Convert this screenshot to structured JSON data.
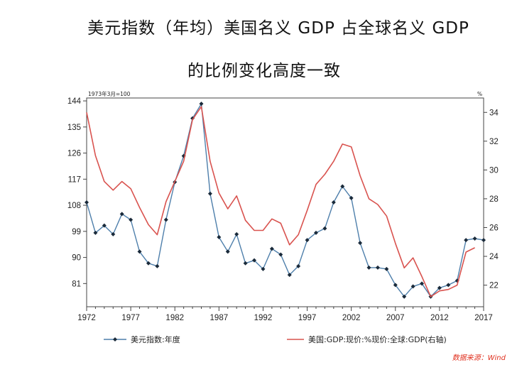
{
  "title": {
    "line1": "美元指数（年均）美国名义 GDP 占全球名义 GDP",
    "line2": "的比例变化高度一致"
  },
  "source": "数据来源：Wind",
  "colors": {
    "dollar_index": "#4e7fab",
    "gdp_share": "#d9534f",
    "axis": "#444444"
  },
  "chart_data": {
    "type": "line",
    "left_axis_unit": "1973年3月=100",
    "right_axis_unit": "%",
    "x_ticks": [
      1972,
      1977,
      1982,
      1987,
      1992,
      1997,
      2002,
      2007,
      2012,
      2017
    ],
    "xlim": [
      1972,
      2017
    ],
    "y_left": {
      "ticks": [
        81,
        90,
        99,
        108,
        117,
        126,
        135,
        144
      ],
      "lim": [
        73,
        145
      ]
    },
    "y_right": {
      "ticks": [
        22,
        24,
        26,
        28,
        30,
        32,
        34
      ],
      "lim": [
        20.5,
        35
      ]
    },
    "series": [
      {
        "name": "美元指数:年度",
        "axis": "left",
        "markers": true,
        "x": [
          1972,
          1973,
          1974,
          1975,
          1976,
          1977,
          1978,
          1979,
          1980,
          1981,
          1982,
          1983,
          1984,
          1985,
          1986,
          1987,
          1988,
          1989,
          1990,
          1991,
          1992,
          1993,
          1994,
          1995,
          1996,
          1997,
          1998,
          1999,
          2000,
          2001,
          2002,
          2003,
          2004,
          2005,
          2006,
          2007,
          2008,
          2009,
          2010,
          2011,
          2012,
          2013,
          2014,
          2015,
          2016,
          2017
        ],
        "values": [
          109,
          98.5,
          101,
          98,
          105,
          103,
          92,
          88,
          87,
          103,
          116,
          125,
          138,
          143,
          112,
          97,
          92,
          98,
          88,
          89,
          86,
          93,
          91,
          84,
          87,
          96,
          98.5,
          100,
          109,
          114.5,
          110.5,
          95,
          86.5,
          86.5,
          86,
          80.5,
          76.5,
          80,
          81,
          76.5,
          79.5,
          80.5,
          82,
          96,
          96.5,
          96
        ]
      },
      {
        "name": "美国:GDP:现价:%现价:全球:GDP(右轴)",
        "axis": "right",
        "markers": false,
        "x": [
          1972,
          1973,
          1974,
          1975,
          1976,
          1977,
          1978,
          1979,
          1980,
          1981,
          1982,
          1983,
          1984,
          1985,
          1986,
          1987,
          1988,
          1989,
          1990,
          1991,
          1992,
          1993,
          1994,
          1995,
          1996,
          1997,
          1998,
          1999,
          2000,
          2001,
          2002,
          2003,
          2004,
          2005,
          2006,
          2007,
          2008,
          2009,
          2010,
          2011,
          2012,
          2013,
          2014,
          2015,
          2016,
          2017
        ],
        "values": [
          34,
          31,
          29.2,
          28.6,
          29.2,
          28.7,
          27.4,
          26.2,
          25.5,
          27.8,
          29.2,
          30.6,
          33.5,
          34.4,
          30.6,
          28.4,
          27.3,
          28.2,
          26.5,
          25.8,
          25.8,
          26.6,
          26.3,
          24.8,
          25.5,
          27.2,
          29,
          29.7,
          30.6,
          31.8,
          31.6,
          29.6,
          28,
          27.6,
          26.8,
          24.9,
          23.2,
          23.9,
          22.6,
          21.2,
          21.6,
          21.7,
          22,
          24.3,
          24.6,
          null
        ]
      }
    ]
  }
}
